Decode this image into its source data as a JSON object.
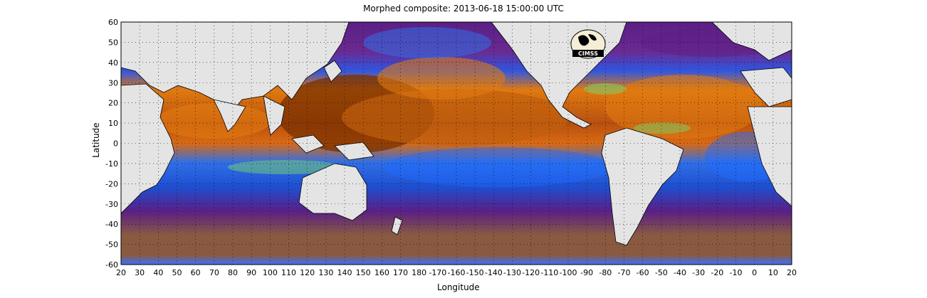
{
  "figure": {
    "title": "Morphed composite: 2013-06-18 15:00:00 UTC",
    "xlabel": "Longitude",
    "ylabel": "Latitude",
    "logo_text": "CIMSS"
  },
  "axes": {
    "x_ticks": [
      "20",
      "30",
      "40",
      "50",
      "60",
      "70",
      "80",
      "90",
      "100",
      "110",
      "120",
      "130",
      "140",
      "150",
      "160",
      "170",
      "180",
      "-170",
      "-160",
      "-150",
      "-140",
      "-130",
      "-120",
      "-110",
      "-100",
      "-90",
      "-80",
      "-70",
      "-60",
      "-50",
      "-40",
      "-30",
      "-20",
      "-10",
      "0",
      "10",
      "20"
    ],
    "y_ticks": [
      "60",
      "50",
      "40",
      "30",
      "20",
      "10",
      "0",
      "-10",
      "-20",
      "-30",
      "-40",
      "-50",
      "-60"
    ],
    "x_range_degrees_east": [
      20,
      380
    ],
    "y_range_degrees": [
      -60,
      60
    ],
    "grid": true
  },
  "colors": {
    "land": "#e4e4e4",
    "coast": "#000000",
    "very_moist": "#7a3000",
    "moist": "#e07a10",
    "moderate": "#f0c040",
    "transition": "#7ad16a",
    "dry": "#1e6bff",
    "very_dry": "#5a1f86",
    "extratropical": "#8a5a40"
  }
}
